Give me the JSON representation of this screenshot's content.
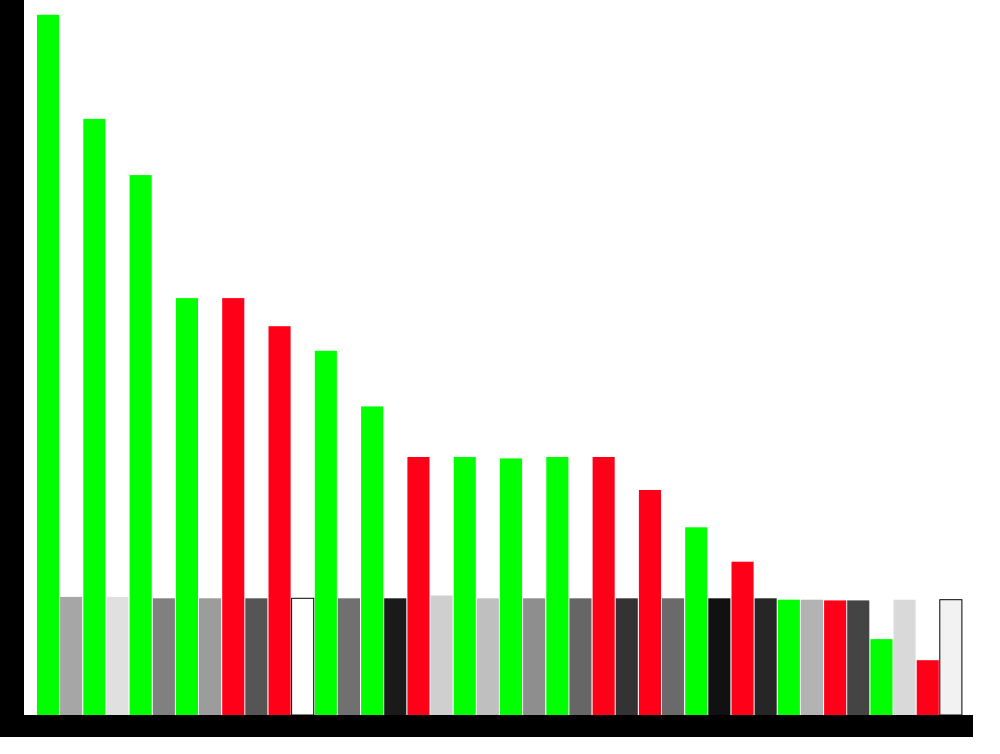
{
  "colors": {
    "background": "#ffffff",
    "axis": "#000000",
    "bar_outline": "#000000"
  },
  "chart_data": {
    "type": "bar",
    "title": "",
    "xlabel": "",
    "ylabel": "",
    "grid": false,
    "legend": "none",
    "ylim": [
      0,
      100
    ],
    "stacks": [
      {
        "lower": {
          "value": 16.8,
          "color": "#a6a6a6"
        },
        "upper": {
          "value": 99.6,
          "color": "#00ff00"
        }
      },
      {
        "lower": {
          "value": 16.8,
          "color": "#e0e0e0"
        },
        "upper": {
          "value": 84.8,
          "color": "#00ff00"
        }
      },
      {
        "lower": {
          "value": 16.6,
          "color": "#808080"
        },
        "upper": {
          "value": 76.8,
          "color": "#00ff00"
        }
      },
      {
        "lower": {
          "value": 16.6,
          "color": "#9c9c9c"
        },
        "upper": {
          "value": 59.3,
          "color": "#00ff00"
        }
      },
      {
        "lower": {
          "value": 16.6,
          "color": "#555555"
        },
        "upper": {
          "value": 59.3,
          "color": "#ff0019"
        }
      },
      {
        "lower": {
          "value": 16.6,
          "color": "#ffffff"
        },
        "upper": {
          "value": 55.3,
          "color": "#ff0019"
        }
      },
      {
        "lower": {
          "value": 16.6,
          "color": "#707070"
        },
        "upper": {
          "value": 51.8,
          "color": "#00ff00"
        }
      },
      {
        "lower": {
          "value": 16.6,
          "color": "#1a1a1a"
        },
        "upper": {
          "value": 43.9,
          "color": "#00ff00"
        }
      },
      {
        "lower": {
          "value": 17.0,
          "color": "#cfcfcf"
        },
        "upper": {
          "value": 36.7,
          "color": "#ff0019"
        }
      },
      {
        "lower": {
          "value": 16.6,
          "color": "#bfbfbf"
        },
        "upper": {
          "value": 36.7,
          "color": "#00ff00"
        }
      },
      {
        "lower": {
          "value": 16.6,
          "color": "#8e8e8e"
        },
        "upper": {
          "value": 36.5,
          "color": "#00ff00"
        }
      },
      {
        "lower": {
          "value": 16.6,
          "color": "#666666"
        },
        "upper": {
          "value": 36.7,
          "color": "#00ff00"
        }
      },
      {
        "lower": {
          "value": 16.6,
          "color": "#333333"
        },
        "upper": {
          "value": 36.7,
          "color": "#ff0019"
        }
      },
      {
        "lower": {
          "value": 16.6,
          "color": "#6a6a6a"
        },
        "upper": {
          "value": 32.0,
          "color": "#ff0019"
        }
      },
      {
        "lower": {
          "value": 16.6,
          "color": "#111111"
        },
        "upper": {
          "value": 26.7,
          "color": "#00ff00"
        }
      },
      {
        "lower": {
          "value": 16.6,
          "color": "#262626"
        },
        "upper": {
          "value": 21.8,
          "color": "#ff0019"
        }
      },
      {
        "lower": {
          "value": 16.4,
          "color": "#b3b3b3"
        },
        "upper": {
          "value": 16.4,
          "color": "#00ff00"
        }
      },
      {
        "lower": {
          "value": 16.3,
          "color": "#444444"
        },
        "upper": {
          "value": 16.3,
          "color": "#ff0019"
        }
      },
      {
        "lower": {
          "value": 16.4,
          "color": "#d9d9d9"
        },
        "upper": {
          "value": 10.8,
          "color": "#00ff00"
        }
      },
      {
        "lower": {
          "value": 16.4,
          "color": "#f2f2f2"
        },
        "upper": {
          "value": 7.8,
          "color": "#ff0019"
        }
      }
    ]
  }
}
